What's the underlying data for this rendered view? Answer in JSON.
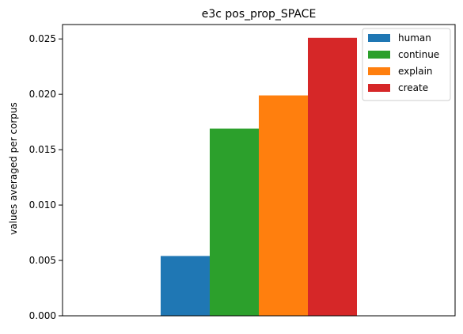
{
  "chart_data": {
    "type": "bar",
    "title": "e3c pos_prop_SPACE",
    "xlabel": "",
    "ylabel": "values averaged per corpus",
    "categories": [
      ""
    ],
    "series": [
      {
        "name": "human",
        "values": [
          0.0054
        ],
        "color": "#1f77b4"
      },
      {
        "name": "continue",
        "values": [
          0.0169
        ],
        "color": "#2ca02c"
      },
      {
        "name": "explain",
        "values": [
          0.0199
        ],
        "color": "#ff7f0e"
      },
      {
        "name": "create",
        "values": [
          0.0251
        ],
        "color": "#d62728"
      }
    ],
    "ylim": [
      0,
      0.0263
    ],
    "yticks": [
      "0.000",
      "0.005",
      "0.010",
      "0.015",
      "0.020",
      "0.025"
    ],
    "ytick_values": [
      0,
      0.005,
      0.01,
      0.015,
      0.02,
      0.025
    ],
    "grid": false,
    "legend_position": "top-right"
  }
}
